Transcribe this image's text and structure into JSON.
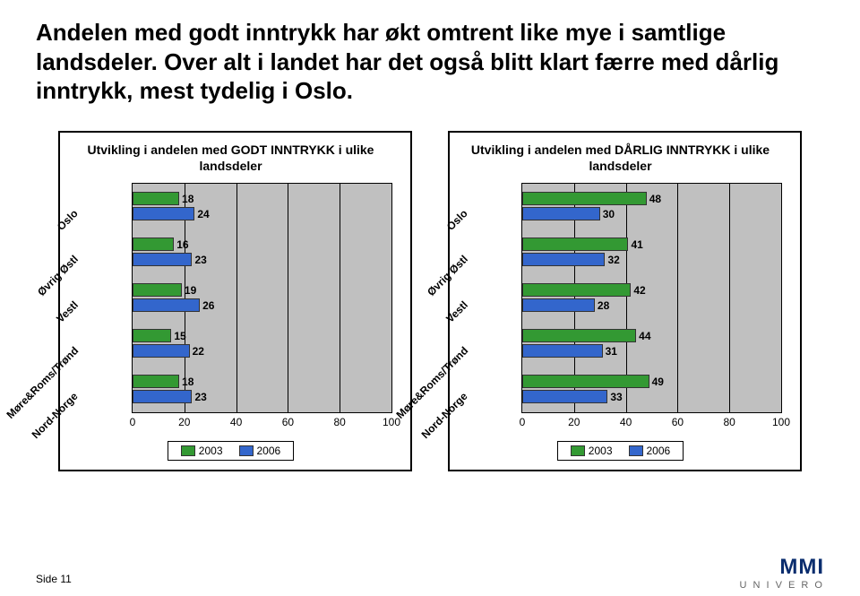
{
  "title": "Andelen med godt inntrykk har økt omtrent like mye i samtlige landsdeler. Over alt i landet har det også blitt klart færre med dårlig inntrykk, mest tydelig i Oslo.",
  "colors": {
    "series_a": "#339933",
    "series_b": "#3366cc",
    "plot_bg": "#c0c0c0"
  },
  "xaxis": {
    "min": 0,
    "max": 100,
    "step": 20,
    "ticks": [
      0,
      20,
      40,
      60,
      80,
      100
    ]
  },
  "regions": [
    "Oslo",
    "Øvrig Østl",
    "Vestl",
    "Møre&Roms/Trønd",
    "Nord-Norge"
  ],
  "chart_left": {
    "title": "Utvikling i andelen med GODT INNTRYKK  i ulike landsdeler",
    "data": [
      {
        "a": 18,
        "b": 24
      },
      {
        "a": 16,
        "b": 23
      },
      {
        "a": 19,
        "b": 26
      },
      {
        "a": 15,
        "b": 22
      },
      {
        "a": 18,
        "b": 23
      }
    ]
  },
  "chart_right": {
    "title": "Utvikling i andelen med DÅRLIG INNTRYKK i ulike landsdeler",
    "data": [
      {
        "a": 48,
        "b": 30
      },
      {
        "a": 41,
        "b": 32
      },
      {
        "a": 42,
        "b": 28
      },
      {
        "a": 44,
        "b": 31
      },
      {
        "a": 49,
        "b": 33
      }
    ]
  },
  "legend": {
    "a": "2003",
    "b": "2006"
  },
  "footer": "Side 11",
  "logo": {
    "big": "MMI",
    "small": "U N I V E R O"
  }
}
